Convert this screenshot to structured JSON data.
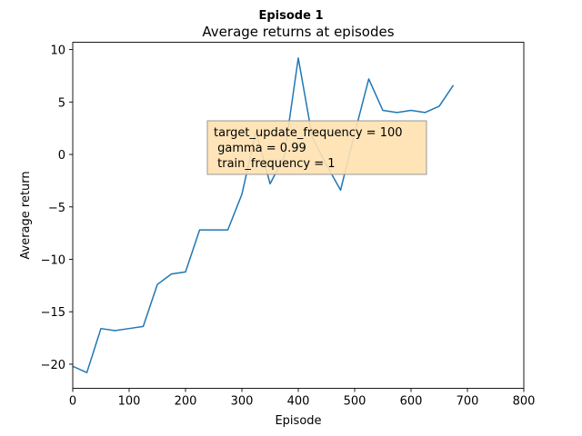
{
  "figure": {
    "suptitle": "Episode 1"
  },
  "chart_data": {
    "type": "line",
    "title": "Average returns at episodes",
    "xlabel": "Episode",
    "ylabel": "Average return",
    "xlim": [
      0,
      800
    ],
    "ylim": [
      -22.3,
      10.7
    ],
    "xticks": [
      0,
      100,
      200,
      300,
      400,
      500,
      600,
      700,
      800
    ],
    "yticks": [
      -20,
      -15,
      -10,
      -5,
      0,
      5,
      10
    ],
    "xtick_labels": [
      "0",
      "100",
      "200",
      "300",
      "400",
      "500",
      "600",
      "700",
      "800"
    ],
    "ytick_labels": [
      "−20",
      "−15",
      "−10",
      "−5",
      "0",
      "5",
      "10"
    ],
    "grid": false,
    "series": [
      {
        "color": "#1f77b4",
        "x": [
          0,
          25,
          50,
          75,
          100,
          125,
          150,
          175,
          200,
          225,
          250,
          275,
          300,
          325,
          350,
          375,
          400,
          425,
          450,
          475,
          500,
          525,
          550,
          575,
          600,
          625,
          650,
          675
        ],
        "values": [
          -20.2,
          -20.8,
          -16.6,
          -16.8,
          -16.6,
          -16.4,
          -12.4,
          -11.4,
          -11.2,
          -7.2,
          -7.2,
          -7.2,
          -3.8,
          2.2,
          -2.8,
          -0.2,
          9.2,
          1.6,
          -1.0,
          -3.4,
          2.0,
          7.2,
          4.2,
          4.0,
          4.2,
          4.0,
          4.6,
          6.6
        ]
      }
    ],
    "annotation": {
      "lines": [
        "target_update_frequency = 100",
        " gamma = 0.99",
        " train_frequency = 1"
      ],
      "facecolor": "#ffe1b0",
      "edgecolor": "#999999"
    }
  }
}
